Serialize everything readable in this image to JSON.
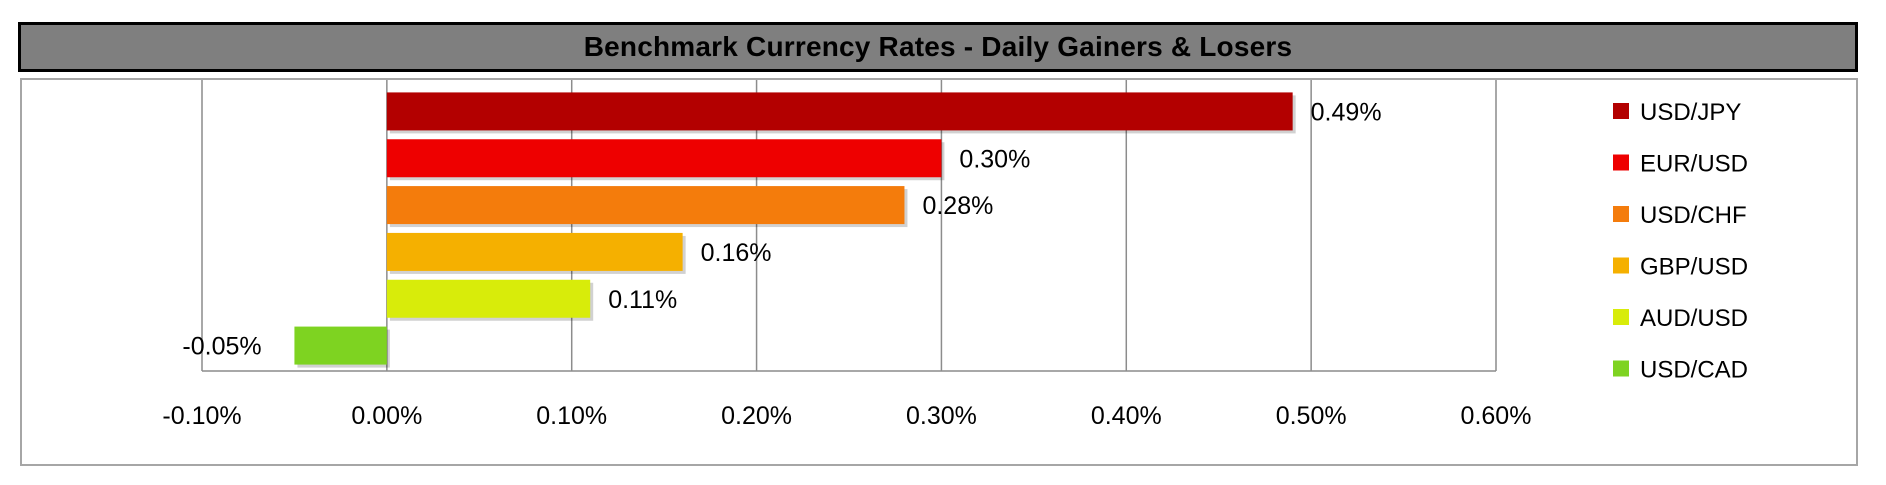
{
  "title": "Benchmark Currency Rates - Daily Gainers & Losers",
  "chart_data": {
    "type": "bar",
    "orientation": "horizontal",
    "title": "Benchmark Currency Rates - Daily Gainers & Losers",
    "categories": [
      "USD/JPY",
      "EUR/USD",
      "USD/CHF",
      "GBP/USD",
      "AUD/USD",
      "USD/CAD"
    ],
    "values": [
      0.49,
      0.3,
      0.28,
      0.16,
      0.11,
      -0.05
    ],
    "value_labels": [
      "0.49%",
      "0.30%",
      "0.28%",
      "0.16%",
      "0.11%",
      "-0.05%"
    ],
    "colors": [
      "#b30000",
      "#ee0000",
      "#f47c0c",
      "#f5b000",
      "#d8ec0a",
      "#7ed321"
    ],
    "xlim": [
      -0.1,
      0.6
    ],
    "xticks": [
      -0.1,
      0.0,
      0.1,
      0.2,
      0.3,
      0.4,
      0.5,
      0.6
    ],
    "xtick_labels": [
      "-0.10%",
      "0.00%",
      "0.10%",
      "0.20%",
      "0.30%",
      "0.40%",
      "0.50%",
      "0.60%"
    ],
    "xlabel": "",
    "ylabel": "",
    "grid": true,
    "legend": {
      "position": "right",
      "entries": [
        "USD/JPY",
        "EUR/USD",
        "USD/CHF",
        "GBP/USD",
        "AUD/USD",
        "USD/CAD"
      ]
    }
  }
}
